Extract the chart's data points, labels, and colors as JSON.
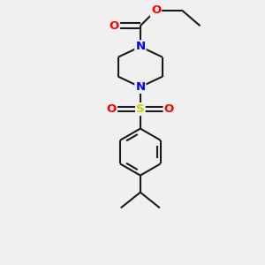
{
  "bg_color": "#f0f0f0",
  "bond_color": "#1a1a1a",
  "bond_width": 1.5,
  "atom_colors": {
    "N": "#0000ff",
    "O": "#ff0000",
    "S": "#cccc00",
    "C": "#1a1a1a"
  },
  "font_size_atom": 9.5,
  "fig_size": [
    3.0,
    3.0
  ],
  "dpi": 100
}
